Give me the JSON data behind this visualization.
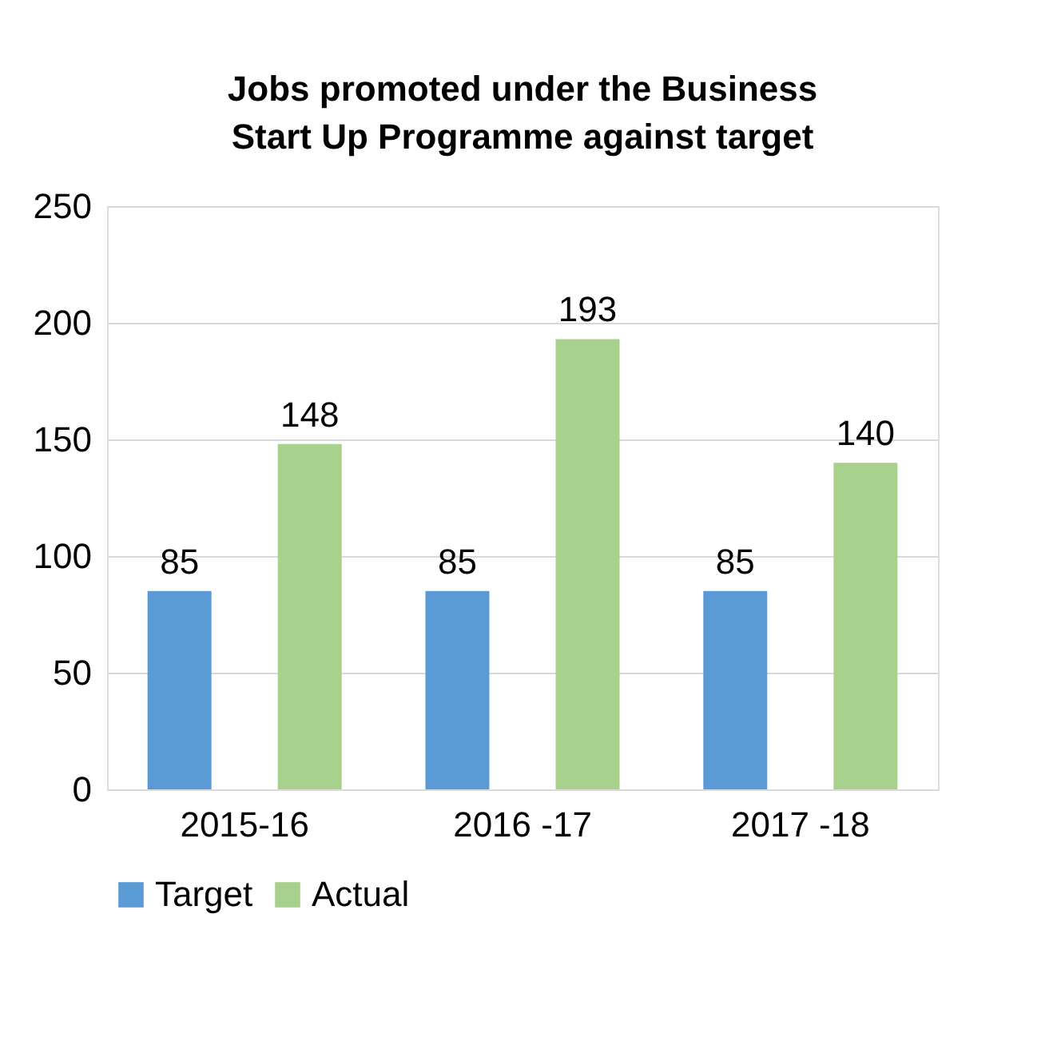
{
  "chart_data": {
    "type": "bar",
    "title": "Jobs promoted under the Business Start Up Programme against target",
    "categories": [
      "2015-16",
      "2016 -17",
      "2017 -18"
    ],
    "series": [
      {
        "name": "Target",
        "color": "#5b9bd5",
        "values": [
          85,
          85,
          85
        ]
      },
      {
        "name": "Actual",
        "color": "#a9d18e",
        "values": [
          148,
          193,
          140
        ]
      }
    ],
    "ylim": [
      0,
      250
    ],
    "yticks": [
      0,
      50,
      100,
      150,
      200,
      250
    ],
    "grid": "y",
    "legend": "bottom",
    "data_labels": true
  }
}
